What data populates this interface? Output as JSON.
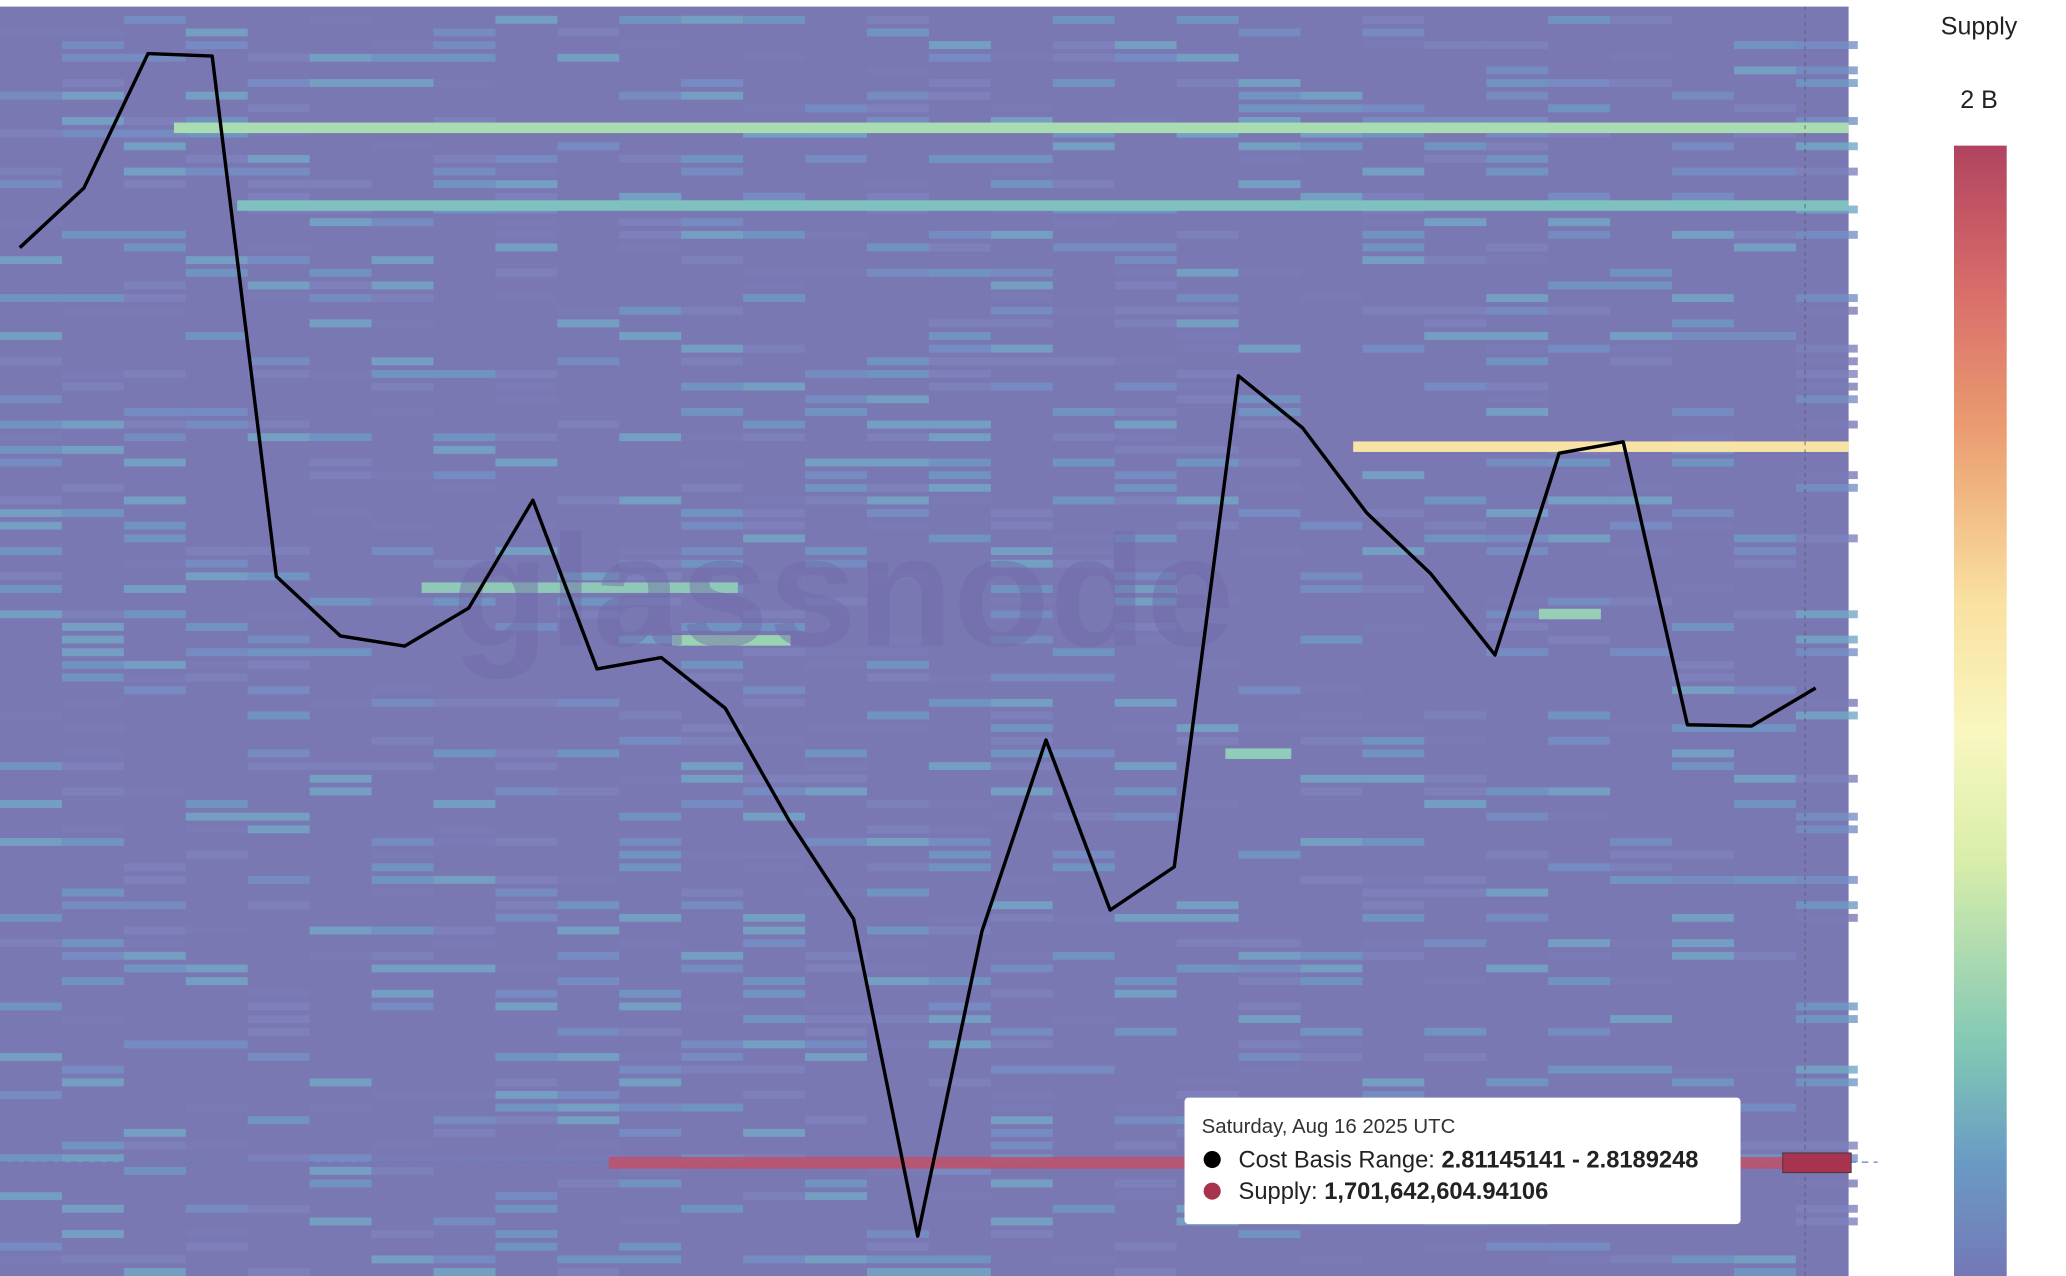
{
  "chart_data": {
    "type": "line",
    "color": "#000000",
    "values": [
      0.81,
      0.857,
      0.963,
      0.961,
      0.551,
      0.504,
      0.496,
      0.526,
      0.611,
      0.478,
      0.487,
      0.447,
      0.358,
      0.281,
      0.031,
      0.271,
      0.422,
      0.288,
      0.322,
      0.709,
      0.668,
      0.601,
      0.553,
      0.489,
      0.648,
      0.657,
      0.434,
      0.433,
      0.463
    ],
    "ylim": [
      0,
      1
    ],
    "colorbar": {
      "title": "Supply",
      "ticks": [
        {
          "value": 2000000000,
          "label": "2 B"
        }
      ]
    },
    "tooltip": {
      "date": "Saturday, Aug 16 2025 UTC",
      "range_label": "Cost Basis Range:",
      "range_value": "2.81145141 - 2.8189248",
      "supply_label": "Supply:",
      "supply_value": "1,701,642,604.94106"
    }
  }
}
